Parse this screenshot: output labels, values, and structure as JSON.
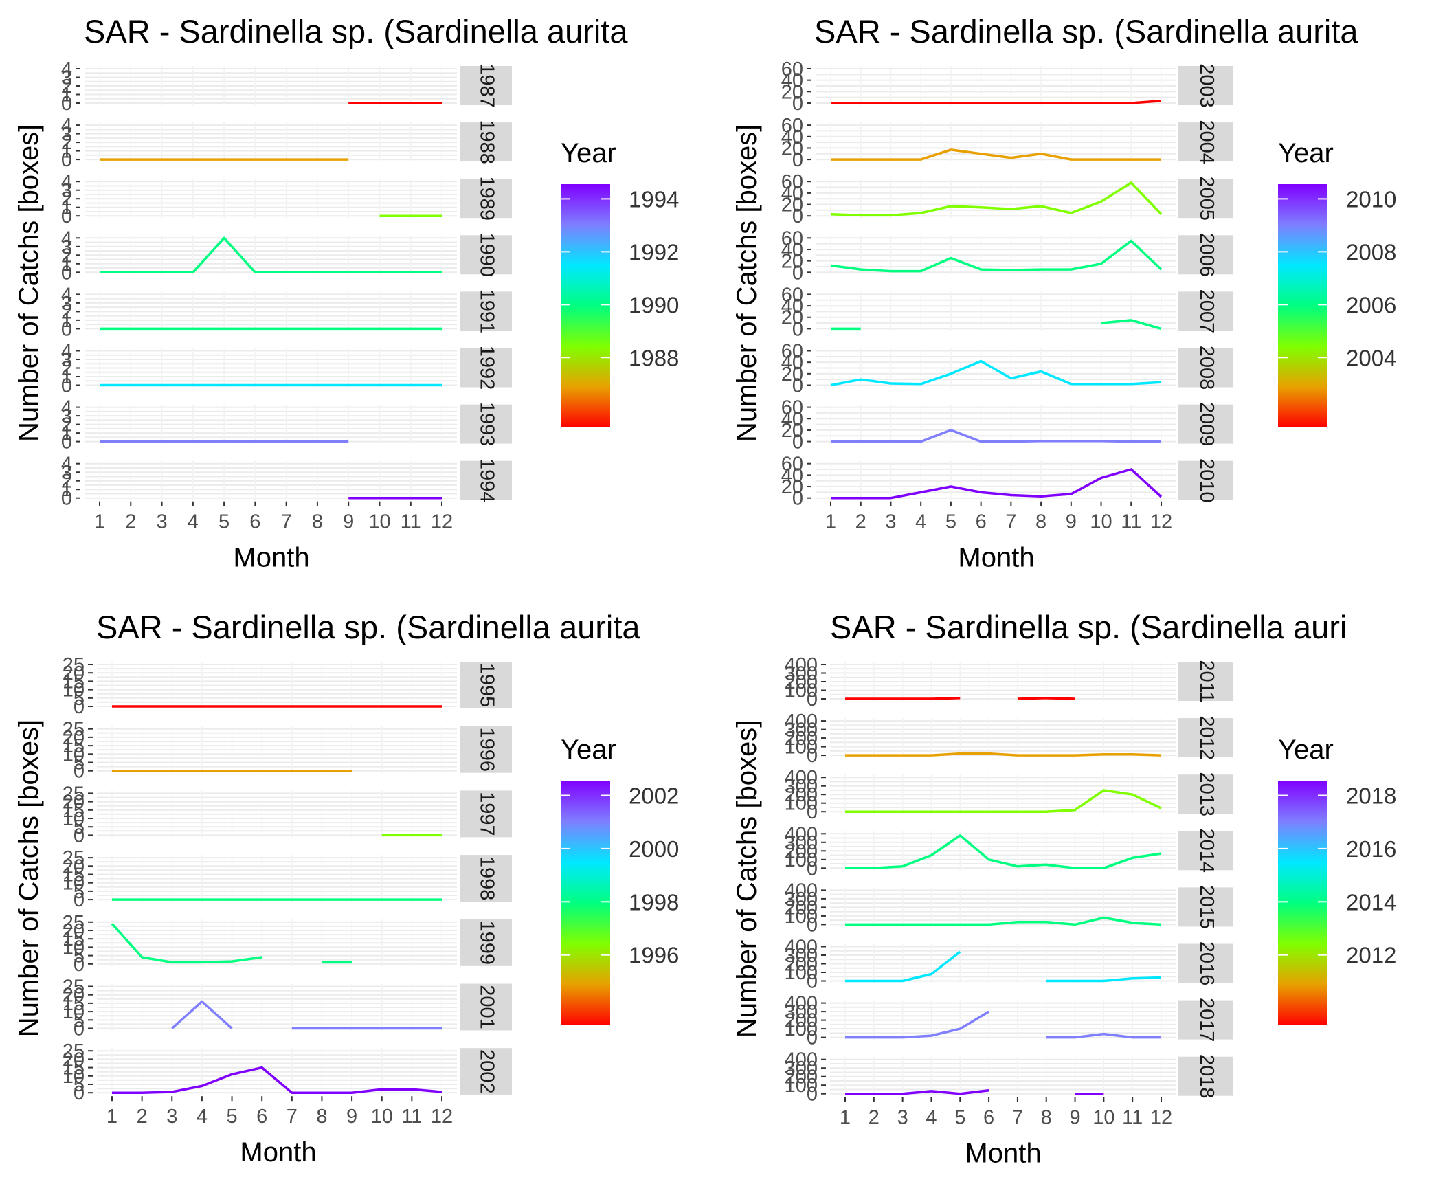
{
  "charts": [
    {
      "title": "SAR - Sardinella sp. (Sardinella aurita",
      "xlabel": "Month",
      "ylabel": "Number of Catchs [boxes]",
      "legend_title": "Year",
      "legend_labels": [
        "1988",
        "1990",
        "1992",
        "1994"
      ],
      "y_ticks": [
        "0",
        "1",
        "2",
        "3",
        "4"
      ]
    },
    {
      "title": "SAR - Sardinella sp. (Sardinella aurita",
      "xlabel": "Month",
      "ylabel": "Number of Catchs [boxes]",
      "legend_title": "Year",
      "legend_labels": [
        "2004",
        "2006",
        "2008",
        "2010"
      ],
      "y_ticks": [
        "0",
        "20",
        "40",
        "60"
      ]
    },
    {
      "title": "SAR - Sardinella sp. (Sardinella aurita",
      "xlabel": "Month",
      "ylabel": "Number of Catchs [boxes]",
      "legend_title": "Year",
      "legend_labels": [
        "1996",
        "1998",
        "2000",
        "2002"
      ],
      "y_ticks": [
        "0",
        "5",
        "10",
        "15",
        "20",
        "25"
      ]
    },
    {
      "title": "SAR - Sardinella sp. (Sardinella auri",
      "xlabel": "Month",
      "ylabel": "Number of Catchs [boxes]",
      "legend_title": "Year",
      "legend_labels": [
        "2012",
        "2014",
        "2016",
        "2018"
      ],
      "y_ticks": [
        "0",
        "100",
        "200",
        "300",
        "400"
      ]
    }
  ],
  "chart_data": [
    {
      "type": "line",
      "x": [
        1,
        2,
        3,
        4,
        5,
        6,
        7,
        8,
        9,
        10,
        11,
        12
      ],
      "xlim": [
        1,
        12
      ],
      "ylim": [
        0,
        4
      ],
      "color_scale": {
        "min_year": 1987,
        "max_year": 1994,
        "colors": [
          "#ff0000",
          "#e8a000",
          "#80ff00",
          "#00ff80",
          "#00e8ff",
          "#7f7fff",
          "#8000ff"
        ]
      },
      "series": [
        {
          "name": "1987",
          "facet_label": "1987",
          "values": [
            null,
            null,
            null,
            null,
            null,
            null,
            null,
            null,
            0,
            0,
            0,
            0
          ]
        },
        {
          "name": "1988",
          "facet_label": "1988",
          "values": [
            0,
            0,
            0,
            0,
            0,
            0,
            0,
            0,
            0,
            null,
            null,
            null
          ]
        },
        {
          "name": "1989",
          "facet_label": "1989",
          "values": [
            null,
            null,
            null,
            null,
            null,
            null,
            null,
            null,
            null,
            0,
            0,
            0
          ]
        },
        {
          "name": "1990",
          "facet_label": "1990",
          "values": [
            0,
            0,
            0,
            0,
            4,
            0,
            0,
            0,
            0,
            0,
            0,
            0
          ]
        },
        {
          "name": "1991",
          "facet_label": "1991",
          "values": [
            0,
            0,
            0,
            0,
            0,
            0,
            0,
            0,
            0,
            0,
            0,
            0
          ]
        },
        {
          "name": "1992",
          "facet_label": "1992",
          "values": [
            0,
            0,
            0,
            0,
            0,
            0,
            0,
            0,
            0,
            0,
            0,
            0
          ]
        },
        {
          "name": "1993",
          "facet_label": "1993",
          "values": [
            0,
            0,
            0,
            0,
            0,
            0,
            0,
            0,
            0,
            null,
            null,
            null
          ]
        },
        {
          "name": "1994",
          "facet_label": "1994",
          "values": [
            null,
            null,
            null,
            null,
            null,
            null,
            null,
            null,
            0,
            0,
            0,
            0
          ]
        }
      ]
    },
    {
      "type": "line",
      "x": [
        1,
        2,
        3,
        4,
        5,
        6,
        7,
        8,
        9,
        10,
        11,
        12
      ],
      "xlim": [
        1,
        12
      ],
      "ylim": [
        0,
        60
      ],
      "color_scale": {
        "min_year": 2003,
        "max_year": 2010,
        "colors": [
          "#ff0000",
          "#e8a000",
          "#80ff00",
          "#00ff80",
          "#00e8ff",
          "#7f7fff",
          "#8000ff"
        ]
      },
      "series": [
        {
          "name": "2003",
          "facet_label": "2003",
          "values": [
            0,
            0,
            0,
            0,
            0,
            0,
            0,
            0,
            0,
            0,
            0,
            4
          ]
        },
        {
          "name": "2004",
          "facet_label": "2004",
          "values": [
            0,
            0,
            0,
            0,
            17,
            10,
            3,
            10,
            0,
            0,
            0,
            0
          ]
        },
        {
          "name": "2005",
          "facet_label": "2005",
          "values": [
            3,
            1,
            1,
            5,
            17,
            15,
            12,
            17,
            5,
            25,
            58,
            3
          ]
        },
        {
          "name": "2006",
          "facet_label": "2006",
          "values": [
            12,
            5,
            2,
            2,
            25,
            5,
            4,
            5,
            5,
            15,
            55,
            5
          ]
        },
        {
          "name": "2007",
          "facet_label": "2007",
          "values": [
            0,
            0,
            null,
            null,
            null,
            null,
            null,
            null,
            null,
            10,
            15,
            0
          ]
        },
        {
          "name": "2008",
          "facet_label": "2008",
          "values": [
            0,
            10,
            3,
            2,
            20,
            42,
            12,
            24,
            2,
            2,
            2,
            5
          ]
        },
        {
          "name": "2009",
          "facet_label": "2009",
          "values": [
            0,
            0,
            0,
            0,
            20,
            0,
            0,
            1,
            1,
            1,
            0,
            0
          ]
        },
        {
          "name": "2010",
          "facet_label": "2010",
          "values": [
            0,
            0,
            0,
            10,
            20,
            10,
            5,
            3,
            7,
            35,
            50,
            2
          ]
        }
      ]
    },
    {
      "type": "line",
      "x": [
        1,
        2,
        3,
        4,
        5,
        6,
        7,
        8,
        9,
        10,
        11,
        12
      ],
      "xlim": [
        1,
        12
      ],
      "ylim": [
        0,
        25
      ],
      "color_scale": {
        "min_year": 1995,
        "max_year": 2002,
        "colors": [
          "#ff0000",
          "#e8a000",
          "#80ff00",
          "#00ff80",
          "#00e8ff",
          "#7f7fff",
          "#8000ff"
        ]
      },
      "series": [
        {
          "name": "1995",
          "facet_label": "1995",
          "values": [
            0,
            0,
            0,
            0,
            0,
            0,
            0,
            0,
            0,
            0,
            0,
            0
          ]
        },
        {
          "name": "1996",
          "facet_label": "1996",
          "values": [
            0,
            0,
            0,
            0,
            0,
            0,
            0,
            0,
            0,
            null,
            null,
            null
          ]
        },
        {
          "name": "1997",
          "facet_label": "1997",
          "values": [
            null,
            null,
            null,
            null,
            null,
            null,
            null,
            null,
            null,
            0,
            0,
            0
          ]
        },
        {
          "name": "1998",
          "facet_label": "1998",
          "values": [
            0,
            0,
            0,
            0,
            0,
            0,
            0,
            0,
            0,
            0,
            0,
            0
          ]
        },
        {
          "name": "1999",
          "facet_label": "1999",
          "values": [
            24,
            4,
            1,
            1,
            1.5,
            4,
            null,
            1,
            1,
            null,
            null,
            null
          ]
        },
        {
          "name": "2001",
          "facet_label": "2001",
          "values": [
            null,
            null,
            0,
            16,
            0,
            null,
            0,
            0,
            0,
            0,
            0,
            0
          ]
        },
        {
          "name": "2002",
          "facet_label": "2002",
          "values": [
            0,
            0,
            0.5,
            4,
            11,
            15,
            0,
            0,
            0,
            2,
            2,
            0.5
          ]
        }
      ]
    },
    {
      "type": "line",
      "x": [
        1,
        2,
        3,
        4,
        5,
        6,
        7,
        8,
        9,
        10,
        11,
        12
      ],
      "xlim": [
        1,
        12
      ],
      "ylim": [
        0,
        400
      ],
      "color_scale": {
        "min_year": 2011,
        "max_year": 2018,
        "colors": [
          "#ff0000",
          "#e8a000",
          "#80ff00",
          "#00ff80",
          "#00e8ff",
          "#7f7fff",
          "#8000ff"
        ]
      },
      "series": [
        {
          "name": "2011",
          "facet_label": "2011",
          "values": [
            0,
            0,
            0,
            0,
            10,
            null,
            0,
            10,
            0,
            null,
            null,
            null
          ]
        },
        {
          "name": "2012",
          "facet_label": "2012",
          "values": [
            0,
            0,
            0,
            0,
            20,
            20,
            0,
            0,
            0,
            10,
            10,
            0
          ]
        },
        {
          "name": "2013",
          "facet_label": "2013",
          "values": [
            0,
            0,
            0,
            0,
            0,
            0,
            0,
            0,
            20,
            250,
            200,
            40
          ]
        },
        {
          "name": "2014",
          "facet_label": "2014",
          "values": [
            0,
            0,
            20,
            150,
            380,
            100,
            20,
            40,
            0,
            0,
            120,
            170
          ]
        },
        {
          "name": "2015",
          "facet_label": "2015",
          "values": [
            0,
            0,
            0,
            0,
            0,
            0,
            30,
            30,
            0,
            80,
            20,
            0
          ]
        },
        {
          "name": "2016",
          "facet_label": "2016",
          "values": [
            0,
            0,
            0,
            80,
            340,
            null,
            null,
            0,
            0,
            0,
            30,
            40
          ]
        },
        {
          "name": "2017",
          "facet_label": "2017",
          "values": [
            0,
            0,
            0,
            20,
            100,
            300,
            null,
            0,
            0,
            40,
            0,
            0
          ]
        },
        {
          "name": "2018",
          "facet_label": "2018",
          "values": [
            0,
            0,
            0,
            30,
            0,
            40,
            null,
            null,
            0,
            0,
            null,
            null
          ]
        }
      ]
    }
  ]
}
